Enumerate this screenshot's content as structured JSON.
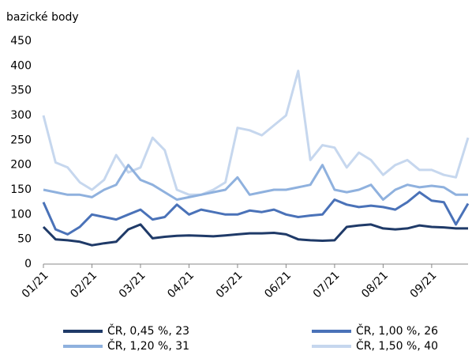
{
  "chart_data": {
    "type": "line",
    "y_label": "bazické body",
    "categories": [
      "01/21",
      null,
      null,
      null,
      "02/21",
      null,
      null,
      null,
      "03/21",
      null,
      null,
      null,
      "04/21",
      null,
      null,
      null,
      "05/21",
      null,
      null,
      null,
      "06/21",
      null,
      null,
      null,
      "07/21",
      null,
      null,
      null,
      "08/21",
      null,
      null,
      null,
      "09/21",
      null,
      null,
      null
    ],
    "series": [
      {
        "name": "ČR, 0,45 %, 23",
        "color": "#1f3a68",
        "values": [
          75,
          50,
          48,
          45,
          38,
          42,
          45,
          70,
          80,
          52,
          55,
          57,
          58,
          57,
          56,
          58,
          60,
          62,
          62,
          63,
          60,
          50,
          48,
          47,
          48,
          75,
          78,
          80,
          72,
          70,
          72,
          78,
          75,
          74,
          72,
          72
        ]
      },
      {
        "name": "ČR, 1,00 %, 26",
        "color": "#4a72b8",
        "values": [
          125,
          70,
          60,
          75,
          100,
          95,
          90,
          100,
          110,
          90,
          95,
          120,
          100,
          110,
          105,
          100,
          100,
          108,
          105,
          110,
          100,
          95,
          98,
          100,
          130,
          120,
          115,
          118,
          115,
          110,
          125,
          145,
          128,
          125,
          80,
          122
        ]
      },
      {
        "name": "ČR, 1,20 %, 31",
        "color": "#8fb1de",
        "values": [
          150,
          145,
          140,
          140,
          135,
          150,
          160,
          200,
          170,
          160,
          145,
          130,
          135,
          140,
          145,
          150,
          175,
          140,
          145,
          150,
          150,
          155,
          160,
          200,
          150,
          145,
          150,
          160,
          130,
          150,
          160,
          155,
          158,
          155,
          140,
          140
        ]
      },
      {
        "name": "ČR, 1,50 %, 40",
        "color": "#c6d7ee",
        "values": [
          300,
          205,
          195,
          165,
          150,
          170,
          220,
          185,
          195,
          255,
          230,
          150,
          140,
          140,
          150,
          165,
          275,
          270,
          260,
          280,
          300,
          390,
          210,
          240,
          235,
          195,
          225,
          210,
          180,
          200,
          210,
          190,
          190,
          180,
          175,
          255
        ]
      }
    ],
    "ylim": [
      0,
      450
    ],
    "yticks": [
      0,
      50,
      100,
      150,
      200,
      250,
      300,
      350,
      400,
      450
    ]
  }
}
